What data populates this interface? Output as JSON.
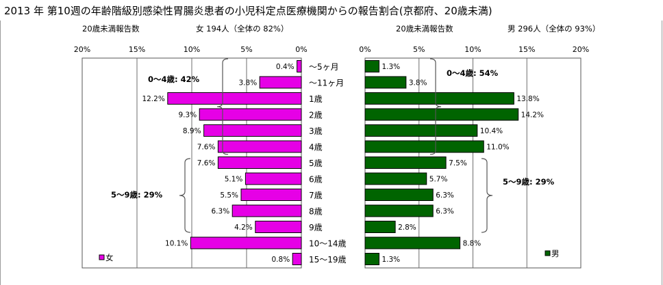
{
  "title": "2013 年 第10週の年齢階級別感染性胃腸炎患者の小児科定点医療機関からの報告割合(京都府、20歳未満)",
  "female_header": {
    "label": "20歳未満報告数",
    "summary": "女 194人（全体の 82%）"
  },
  "male_header": {
    "label": "20歳未満報告数",
    "summary": "男 296人（全体の 93%）"
  },
  "colors": {
    "female": "#e600e6",
    "male": "#006400",
    "grid": "#6e6e6e"
  },
  "chart_data": {
    "type": "bar",
    "categories": [
      "～5ヶ月",
      "～11ヶ月",
      "1歳",
      "2歳",
      "3歳",
      "4歳",
      "5歳",
      "6歳",
      "7歳",
      "8歳",
      "9歳",
      "10～14歳",
      "15～19歳"
    ],
    "x_ticks": [
      "20%",
      "15%",
      "10%",
      "5%",
      "0%"
    ],
    "x_ticks_right": [
      "0%",
      "5%",
      "10%",
      "15%",
      "20%"
    ],
    "xlim": [
      0,
      20
    ],
    "series": [
      {
        "name": "女",
        "values": [
          0.4,
          3.8,
          12.2,
          9.3,
          8.9,
          7.6,
          7.6,
          5.1,
          5.5,
          6.3,
          4.2,
          10.1,
          0.8
        ],
        "labels": [
          "0.4%",
          "3.8%",
          "12.2%",
          "9.3%",
          "8.9%",
          "7.6%",
          "7.6%",
          "5.1%",
          "5.5%",
          "6.3%",
          "4.2%",
          "10.1%",
          "0.8%"
        ]
      },
      {
        "name": "男",
        "values": [
          1.3,
          3.8,
          13.8,
          14.2,
          10.4,
          11.0,
          7.5,
          5.7,
          6.3,
          6.3,
          2.8,
          8.8,
          1.3
        ],
        "labels": [
          "1.3%",
          "3.8%",
          "13.8%",
          "14.2%",
          "10.4%",
          "11.0%",
          "7.5%",
          "5.7%",
          "6.3%",
          "6.3%",
          "2.8%",
          "8.8%",
          "1.3%"
        ]
      }
    ],
    "annotations": {
      "female_0_4": "0～4歳: 42%",
      "female_5_9": "5～9歳: 29%",
      "male_0_4": "0～4歳: 54%",
      "male_5_9": "5～9歳: 29%"
    },
    "legend_female": "女",
    "legend_male": "男"
  }
}
